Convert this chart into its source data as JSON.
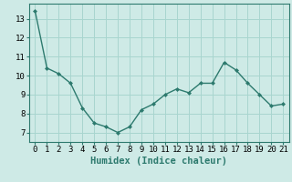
{
  "x": [
    0,
    1,
    2,
    3,
    4,
    5,
    6,
    7,
    8,
    9,
    10,
    11,
    12,
    13,
    14,
    15,
    16,
    17,
    18,
    19,
    20,
    21
  ],
  "y": [
    13.4,
    10.4,
    10.1,
    9.6,
    8.3,
    7.5,
    7.3,
    7.0,
    7.3,
    8.2,
    8.5,
    9.0,
    9.3,
    9.1,
    9.6,
    9.6,
    10.7,
    10.3,
    9.6,
    9.0,
    8.4,
    8.5
  ],
  "line_color": "#2d7a6e",
  "marker": "D",
  "marker_size": 2.0,
  "line_width": 1.0,
  "bg_color": "#ceeae6",
  "grid_color": "#a8d5cf",
  "xlabel": "Humidex (Indice chaleur)",
  "xlabel_fontsize": 7.5,
  "xlim": [
    -0.5,
    21.5
  ],
  "ylim": [
    6.5,
    13.8
  ],
  "yticks": [
    7,
    8,
    9,
    10,
    11,
    12,
    13
  ],
  "xticks": [
    0,
    1,
    2,
    3,
    4,
    5,
    6,
    7,
    8,
    9,
    10,
    11,
    12,
    13,
    14,
    15,
    16,
    17,
    18,
    19,
    20,
    21
  ],
  "tick_fontsize": 6.5,
  "spine_color": "#2d7a6e"
}
